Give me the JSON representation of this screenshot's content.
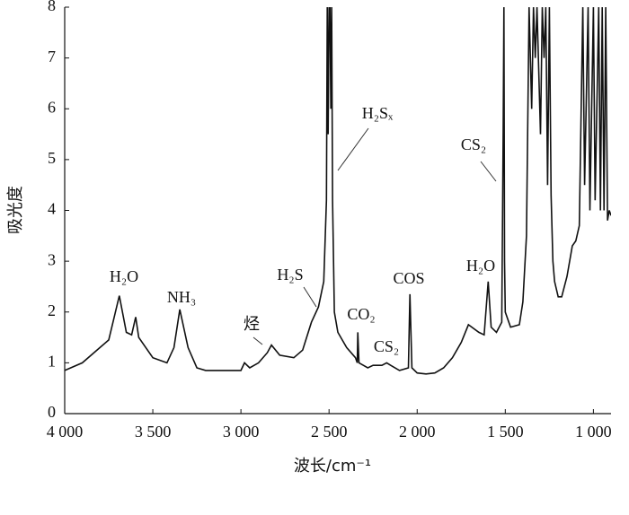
{
  "chart_data": {
    "type": "line",
    "xlabel": "波长/cm⁻¹",
    "ylabel": "吸光度",
    "x": [
      4000,
      3900,
      3800,
      3750,
      3690,
      3650,
      3620,
      3597,
      3580,
      3500,
      3420,
      3380,
      3347,
      3300,
      3250,
      3200,
      3100,
      3000,
      2980,
      2950,
      2900,
      2850,
      2827,
      2780,
      2700,
      2650,
      2600,
      2560,
      2530,
      2515,
      2510,
      2505,
      2500,
      2495,
      2490,
      2485,
      2480,
      2470,
      2450,
      2400,
      2350,
      2340,
      2337,
      2330,
      2280,
      2250,
      2200,
      2173,
      2150,
      2100,
      2050,
      2041,
      2030,
      2000,
      1950,
      1900,
      1850,
      1800,
      1750,
      1709,
      1650,
      1620,
      1597,
      1580,
      1550,
      1520,
      1512,
      1508,
      1504,
      1500,
      1470,
      1420,
      1400,
      1380,
      1365,
      1350,
      1340,
      1330,
      1320,
      1300,
      1290,
      1280,
      1270,
      1260,
      1250,
      1240,
      1230,
      1220,
      1200,
      1180,
      1150,
      1120,
      1100,
      1080,
      1060,
      1050,
      1030,
      1020,
      1000,
      990,
      970,
      960,
      950,
      940,
      930,
      920,
      910,
      900
    ],
    "values": [
      0.85,
      1.0,
      1.3,
      1.45,
      2.32,
      1.6,
      1.55,
      1.9,
      1.5,
      1.1,
      1.0,
      1.3,
      2.05,
      1.3,
      0.9,
      0.85,
      0.85,
      0.85,
      1.0,
      0.9,
      1.0,
      1.2,
      1.35,
      1.15,
      1.1,
      1.25,
      1.8,
      2.1,
      2.6,
      4.2,
      8,
      5.5,
      8,
      8,
      6,
      8,
      4.2,
      2.0,
      1.6,
      1.3,
      1.1,
      1.0,
      1.6,
      1.0,
      0.9,
      0.95,
      0.95,
      1.0,
      0.95,
      0.85,
      0.9,
      2.35,
      0.9,
      0.8,
      0.78,
      0.8,
      0.9,
      1.1,
      1.4,
      1.75,
      1.6,
      1.55,
      2.6,
      1.7,
      1.6,
      1.8,
      5.6,
      8,
      3.0,
      2.0,
      1.7,
      1.75,
      2.2,
      3.5,
      8,
      6,
      8,
      7,
      8,
      5.5,
      8,
      7,
      8,
      4.5,
      8,
      4.3,
      3.0,
      2.6,
      2.3,
      2.3,
      2.7,
      3.3,
      3.4,
      3.7,
      8,
      4.5,
      8,
      4.0,
      8,
      4.2,
      8,
      4.0,
      8,
      4.0,
      8,
      3.8,
      4.0,
      3.9
    ],
    "color": "#111111",
    "xlim": [
      4000,
      900
    ],
    "xticks": [
      {
        "value": 4000,
        "label": "4 000"
      },
      {
        "value": 3500,
        "label": "3 500"
      },
      {
        "value": 3000,
        "label": "3 000"
      },
      {
        "value": 2500,
        "label": "2 500"
      },
      {
        "value": 2000,
        "label": "2 000"
      },
      {
        "value": 1500,
        "label": "1 500"
      },
      {
        "value": 1000,
        "label": "1 000"
      }
    ],
    "ylim": [
      0,
      8
    ],
    "yticks": [
      0,
      1,
      2,
      3,
      4,
      5,
      6,
      7,
      8
    ],
    "annotations": [
      "H₂O",
      "NH₃",
      "烃",
      "H₂S",
      "H₂Sₓ",
      "CO₂",
      "CS₂",
      "COS",
      "H₂O",
      "CS₂"
    ]
  }
}
